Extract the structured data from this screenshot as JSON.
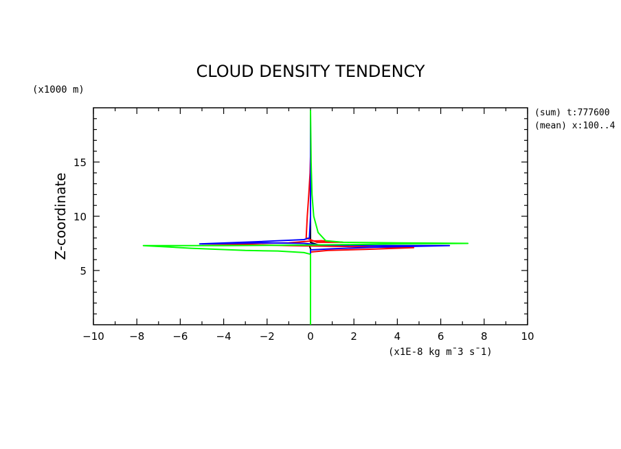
{
  "chart_data": {
    "type": "line",
    "title": "CLOUD DENSITY TENDENCY",
    "xlabel": "(x1E-8 kg m¯3 s¯1)",
    "ylabel": "Z-coordinate",
    "yunit": "(x1000 m)",
    "annotations": [
      "(sum) t:777600",
      "(mean) x:100..4"
    ],
    "xlim": [
      -10,
      10
    ],
    "ylim": [
      0,
      20
    ],
    "xticks": [
      -10,
      -8,
      -6,
      -4,
      -2,
      0,
      2,
      4,
      6,
      8,
      10
    ],
    "xtick_labels": [
      "−10",
      "−8",
      "−6",
      "−4",
      "−2",
      "0",
      "2",
      "4",
      "6",
      "8",
      "10"
    ],
    "yticks": [
      5,
      10,
      15
    ],
    "ytick_labels": [
      "5",
      "10",
      "15"
    ],
    "grid": false,
    "legend": "none",
    "series": [
      {
        "color": "#000000",
        "points": [
          [
            0,
            0
          ],
          [
            0,
            6.5
          ],
          [
            0,
            7.0
          ],
          [
            -0.05,
            7.3
          ],
          [
            0.3,
            7.4
          ],
          [
            0,
            7.6
          ],
          [
            0,
            9
          ],
          [
            0,
            12
          ],
          [
            0,
            14
          ],
          [
            0,
            16.4
          ],
          [
            0,
            19.8
          ]
        ]
      },
      {
        "color": "#ff0000",
        "points": [
          [
            0,
            0
          ],
          [
            0,
            6.7
          ],
          [
            0.8,
            6.85
          ],
          [
            2.5,
            6.95
          ],
          [
            4.75,
            7.1
          ],
          [
            2.0,
            7.2
          ],
          [
            -1.0,
            7.3
          ],
          [
            -3.0,
            7.4
          ],
          [
            -5.0,
            7.45
          ],
          [
            -1.0,
            7.55
          ],
          [
            -0.05,
            7.7
          ],
          [
            0.5,
            7.75
          ],
          [
            1.5,
            7.6
          ],
          [
            0.3,
            7.6
          ],
          [
            -0.2,
            8.0
          ],
          [
            -0.15,
            10
          ],
          [
            -0.08,
            12
          ],
          [
            -0.02,
            14
          ],
          [
            0,
            15.5
          ],
          [
            0,
            19.8
          ]
        ]
      },
      {
        "color": "#0000ff",
        "points": [
          [
            0,
            0
          ],
          [
            0,
            6.9
          ],
          [
            1.0,
            7.0
          ],
          [
            3.0,
            7.15
          ],
          [
            6.4,
            7.3
          ],
          [
            3.0,
            7.3
          ],
          [
            0.5,
            7.35
          ],
          [
            -0.3,
            7.5
          ],
          [
            -2.0,
            7.55
          ],
          [
            -5.1,
            7.45
          ],
          [
            -2.5,
            7.65
          ],
          [
            -0.3,
            7.85
          ],
          [
            -0.05,
            8.0
          ],
          [
            0,
            10
          ],
          [
            0,
            12
          ],
          [
            0,
            15
          ],
          [
            0,
            19.8
          ]
        ]
      },
      {
        "color": "#00ff00",
        "points": [
          [
            0,
            0
          ],
          [
            0,
            6.5
          ],
          [
            -0.3,
            6.65
          ],
          [
            -1.5,
            6.8
          ],
          [
            -3.0,
            6.85
          ],
          [
            -5.5,
            7.05
          ],
          [
            -7.7,
            7.3
          ],
          [
            -4.0,
            7.3
          ],
          [
            0,
            7.35
          ],
          [
            2.0,
            7.4
          ],
          [
            4.0,
            7.45
          ],
          [
            7.25,
            7.5
          ],
          [
            4.0,
            7.55
          ],
          [
            1.5,
            7.6
          ],
          [
            0.7,
            7.75
          ],
          [
            0.35,
            8.5
          ],
          [
            0.15,
            10
          ],
          [
            0.07,
            12
          ],
          [
            0.03,
            15
          ],
          [
            0,
            19.8
          ]
        ]
      }
    ]
  }
}
